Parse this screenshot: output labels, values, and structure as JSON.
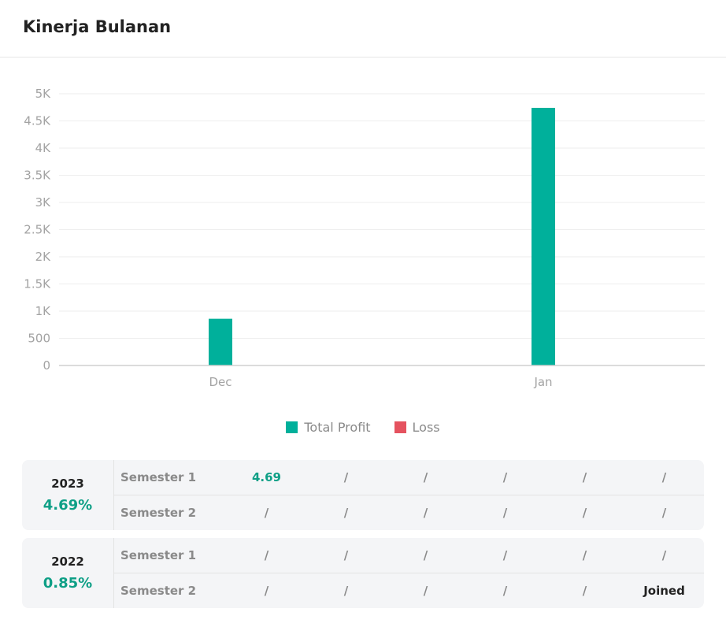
{
  "header": {
    "title": "Kinerja Bulanan"
  },
  "chart_data": {
    "type": "bar",
    "categories": [
      "Dec",
      "Jan"
    ],
    "series": [
      {
        "name": "Total Profit",
        "values": [
          860,
          4740
        ],
        "color": "#00b09b"
      },
      {
        "name": "Loss",
        "values": [
          0,
          0
        ],
        "color": "#e5525f"
      }
    ],
    "ylim": [
      0,
      5000
    ],
    "yticks": [
      "0",
      "500",
      "1K",
      "1.5K",
      "2K",
      "2.5K",
      "3K",
      "3.5K",
      "4K",
      "4.5K",
      "5K"
    ],
    "grid": true,
    "legend_position": "bottom"
  },
  "performance": [
    {
      "year": "2023",
      "pct": "4.69%",
      "semesters": [
        {
          "label": "Semester 1",
          "cells": [
            "4.69",
            "/",
            "/",
            "/",
            "/",
            "/"
          ]
        },
        {
          "label": "Semester 2",
          "cells": [
            "/",
            "/",
            "/",
            "/",
            "/",
            "/"
          ]
        }
      ]
    },
    {
      "year": "2022",
      "pct": "0.85%",
      "semesters": [
        {
          "label": "Semester 1",
          "cells": [
            "/",
            "/",
            "/",
            "/",
            "/",
            "/"
          ]
        },
        {
          "label": "Semester 2",
          "cells": [
            "/",
            "/",
            "/",
            "/",
            "/",
            "Joined"
          ]
        }
      ]
    }
  ],
  "colors": {
    "accent": "#0e9f86",
    "bar": "#00b09b",
    "loss": "#e5525f",
    "panel": "#f4f5f7"
  }
}
